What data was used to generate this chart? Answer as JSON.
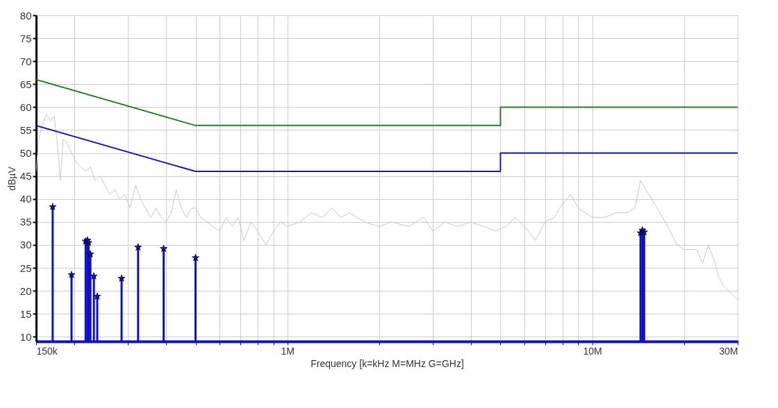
{
  "chart_data": {
    "type": "line",
    "xlabel": "Frequency [k=kHz M=MHz G=GHz]",
    "ylabel": "dBµV",
    "log": "x",
    "xlim": [
      150000,
      30000000
    ],
    "xticks": [
      {
        "value": 150000,
        "label": "150k"
      },
      {
        "value": 200000,
        "label": null
      },
      {
        "value": 300000,
        "label": null
      },
      {
        "value": 400000,
        "label": null
      },
      {
        "value": 500000,
        "label": null
      },
      {
        "value": 600000,
        "label": null
      },
      {
        "value": 700000,
        "label": null
      },
      {
        "value": 800000,
        "label": null
      },
      {
        "value": 900000,
        "label": null
      },
      {
        "value": 1000000,
        "label": "1M"
      },
      {
        "value": 2000000,
        "label": null
      },
      {
        "value": 3000000,
        "label": null
      },
      {
        "value": 4000000,
        "label": null
      },
      {
        "value": 5000000,
        "label": null
      },
      {
        "value": 6000000,
        "label": null
      },
      {
        "value": 7000000,
        "label": null
      },
      {
        "value": 8000000,
        "label": null
      },
      {
        "value": 9000000,
        "label": null
      },
      {
        "value": 10000000,
        "label": "10M"
      },
      {
        "value": 20000000,
        "label": null
      },
      {
        "value": 30000000,
        "label": "30M"
      }
    ],
    "ylim": [
      9,
      80
    ],
    "yticks": [
      10,
      15,
      20,
      25,
      30,
      35,
      40,
      45,
      50,
      55,
      60,
      65,
      70,
      75,
      80
    ],
    "grid": true,
    "series": [
      {
        "color": "#c8c8c8",
        "x": [
          150000,
          153000,
          157000,
          162000,
          167000,
          172000,
          176000,
          180000,
          184000,
          190000,
          196000,
          203000,
          210000,
          218000,
          226000,
          234000,
          243000,
          252000,
          262000,
          272000,
          282000,
          293000,
          305000,
          318000,
          330000,
          343000,
          357000,
          371000,
          386000,
          400000,
          416000,
          432000,
          449000,
          467000,
          485000,
          500000,
          520000,
          545000,
          570000,
          600000,
          630000,
          660000,
          690000,
          720000,
          760000,
          800000,
          850000,
          900000,
          950000,
          1000000,
          1100000,
          1200000,
          1300000,
          1400000,
          1500000,
          1600000,
          1800000,
          2000000,
          2200000,
          2500000,
          2800000,
          3000000,
          3300000,
          3600000,
          4000000,
          4400000,
          4800000,
          5200000,
          5600000,
          6000000,
          6500000,
          7000000,
          7500000,
          8000000,
          8500000,
          9000000,
          9500000,
          10000000,
          11000000,
          12000000,
          13000000,
          13800000,
          14400000,
          15000000,
          16000000,
          17000000,
          18000000,
          19000000,
          20000000,
          22000000,
          23000000,
          24000000,
          25000000,
          26000000,
          27000000,
          28000000,
          29000000,
          30000000
        ],
        "values": [
          46,
          53,
          56,
          58.5,
          57,
          58,
          52,
          44,
          53,
          52,
          50,
          48,
          47,
          46,
          47,
          44,
          45,
          43,
          41,
          42,
          40,
          41,
          38,
          43,
          40,
          38,
          36,
          38,
          36,
          35,
          37,
          42,
          38,
          36,
          38,
          38,
          36,
          35,
          34,
          33,
          36,
          34,
          36,
          31,
          35,
          33,
          30,
          33,
          35,
          34,
          35,
          37,
          36,
          38,
          36,
          37,
          35,
          34,
          35,
          34,
          36,
          33,
          35,
          34,
          35,
          34,
          33,
          34,
          36,
          34,
          31,
          35,
          36,
          39,
          41,
          38,
          37,
          36,
          36,
          37,
          37,
          38,
          44,
          42,
          39,
          36,
          33,
          30,
          29,
          29,
          26,
          30,
          27,
          23,
          21,
          20,
          19,
          18
        ]
      },
      {
        "color": "#2a7a2a",
        "x": [
          150000,
          500000,
          5000000,
          5000000,
          30000000
        ],
        "values": [
          66,
          56,
          56,
          60,
          60
        ]
      },
      {
        "color": "#1c1ca0",
        "x": [
          150000,
          500000,
          5000000,
          5000000,
          30000000
        ],
        "values": [
          56,
          46,
          46,
          50,
          50
        ]
      },
      {
        "type": "lollipop",
        "color": "#1010c0",
        "marker": "star",
        "x": [
          170000,
          196000,
          218000,
          221000,
          223000,
          226000,
          232000,
          238000,
          286000,
          324000,
          393000,
          500000,
          14400000,
          14600000,
          14800000
        ],
        "values": [
          38.3,
          23.5,
          30.8,
          31.0,
          30.5,
          28.0,
          23.2,
          18.8,
          22.7,
          29.5,
          29.2,
          27.2,
          32.6,
          33.2,
          32.8
        ]
      }
    ]
  }
}
